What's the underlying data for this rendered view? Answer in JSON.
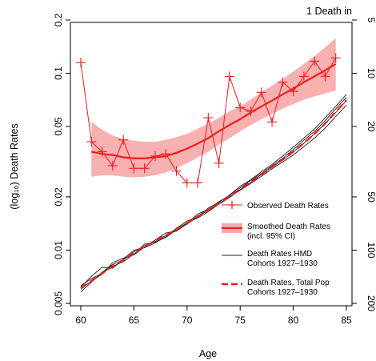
{
  "chart_data": {
    "type": "line",
    "xlabel": "Age",
    "ylabel": "(log₁₀) Death Rates",
    "right_axis_title": "1 Death in",
    "x_range": [
      60,
      85
    ],
    "y_range": [
      0.005,
      0.2
    ],
    "y_scale": "log10",
    "x_ticks": [
      60,
      65,
      70,
      75,
      80,
      85
    ],
    "x_tick_labels": [
      "60",
      "65",
      "70",
      "75",
      "80",
      "85"
    ],
    "y_ticks": [
      0.005,
      0.01,
      0.02,
      0.05,
      0.1,
      0.2
    ],
    "y_tick_labels": [
      "0.005",
      "0.01",
      "0.02",
      "0.05",
      "0.1",
      "0.2"
    ],
    "right_ticks": [
      5,
      10,
      20,
      50,
      100,
      200
    ],
    "right_tick_labels": [
      "5",
      "10",
      "20",
      "50",
      "100",
      "200"
    ],
    "grid": false,
    "legend_position": "right",
    "colors": {
      "red": "#ee1c1c",
      "band": "#f7a7a7",
      "black": "#222222"
    },
    "legend": [
      {
        "key": "observed",
        "label_lines": [
          "Observed Death Rates"
        ]
      },
      {
        "key": "smoothed",
        "label_lines": [
          "Smoothed Death Rates",
          "(incl. 95% CI)"
        ]
      },
      {
        "key": "hmd",
        "label_lines": [
          "Death Rates HMD",
          "Cohorts 1927–1930"
        ]
      },
      {
        "key": "total",
        "label_lines": [
          "Death Rates, Total Pop",
          "Cohorts 1927–1930"
        ]
      }
    ],
    "series": [
      {
        "name": "Observed Death Rates",
        "style": "red-line-plus-markers",
        "x": [
          60,
          61,
          62,
          63,
          64,
          65,
          66,
          67,
          68,
          69,
          70,
          71,
          72,
          73,
          74,
          75,
          76,
          77,
          78,
          79,
          80,
          81,
          82,
          83,
          84
        ],
        "values": [
          0.115,
          0.041,
          0.036,
          0.03,
          0.042,
          0.029,
          0.029,
          0.034,
          0.035,
          0.028,
          0.024,
          0.024,
          0.056,
          0.031,
          0.096,
          0.064,
          0.061,
          0.078,
          0.053,
          0.089,
          0.079,
          0.096,
          0.117,
          0.096,
          0.122
        ]
      },
      {
        "name": "Smoothed Death Rates (incl. 95% CI)",
        "style": "red-line-with-band",
        "x": [
          61,
          62,
          63,
          64,
          65,
          66,
          67,
          68,
          69,
          70,
          71,
          72,
          73,
          74,
          75,
          76,
          77,
          78,
          79,
          80,
          81,
          82,
          83,
          84
        ],
        "values": [
          0.036,
          0.035,
          0.0345,
          0.0335,
          0.033,
          0.033,
          0.0335,
          0.034,
          0.0355,
          0.0375,
          0.04,
          0.043,
          0.047,
          0.051,
          0.055,
          0.06,
          0.065,
          0.07,
          0.076,
          0.082,
          0.089,
          0.096,
          0.104,
          0.113
        ],
        "lower": [
          0.026,
          0.0265,
          0.0265,
          0.026,
          0.0258,
          0.026,
          0.0265,
          0.0275,
          0.029,
          0.031,
          0.0335,
          0.036,
          0.0395,
          0.043,
          0.047,
          0.051,
          0.055,
          0.059,
          0.063,
          0.067,
          0.071,
          0.074,
          0.077,
          0.08
        ],
        "upper": [
          0.053,
          0.048,
          0.0445,
          0.0425,
          0.0415,
          0.041,
          0.041,
          0.042,
          0.0435,
          0.0455,
          0.0485,
          0.052,
          0.056,
          0.061,
          0.065,
          0.071,
          0.078,
          0.085,
          0.093,
          0.102,
          0.113,
          0.125,
          0.14,
          0.158
        ]
      },
      {
        "name": "Death Rates HMD Cohorts 1927–1930",
        "style": "thin-black-lines",
        "x": [
          60,
          61,
          62,
          63,
          64,
          65,
          66,
          67,
          68,
          69,
          70,
          71,
          72,
          73,
          74,
          75,
          76,
          77,
          78,
          79,
          80,
          81,
          82,
          83,
          84,
          85
        ],
        "lines": [
          [
            0.0058,
            0.0066,
            0.0075,
            0.0083,
            0.0088,
            0.0098,
            0.0106,
            0.0112,
            0.0121,
            0.0132,
            0.014,
            0.0155,
            0.0168,
            0.0183,
            0.02,
            0.0218,
            0.0238,
            0.0262,
            0.0288,
            0.0315,
            0.0345,
            0.0385,
            0.043,
            0.049,
            0.057,
            0.066
          ],
          [
            0.0063,
            0.0069,
            0.0074,
            0.0081,
            0.0086,
            0.0095,
            0.0108,
            0.0111,
            0.0118,
            0.013,
            0.0143,
            0.0152,
            0.0165,
            0.0182,
            0.0198,
            0.022,
            0.0242,
            0.0268,
            0.0295,
            0.0322,
            0.036,
            0.0402,
            0.0455,
            0.052,
            0.06,
            0.07
          ],
          [
            0.006,
            0.0067,
            0.0073,
            0.0085,
            0.009,
            0.0094,
            0.0104,
            0.0114,
            0.0125,
            0.0128,
            0.0141,
            0.016,
            0.017,
            0.0188,
            0.0203,
            0.0225,
            0.0248,
            0.0272,
            0.03,
            0.033,
            0.037,
            0.0418,
            0.047,
            0.054,
            0.063,
            0.073
          ],
          [
            0.0062,
            0.0071,
            0.008,
            0.0079,
            0.0089,
            0.01,
            0.0103,
            0.011,
            0.0119,
            0.0133,
            0.0146,
            0.0154,
            0.0173,
            0.0186,
            0.0205,
            0.023,
            0.025,
            0.0278,
            0.0305,
            0.034,
            0.0382,
            0.043,
            0.0485,
            0.056,
            0.065,
            0.076
          ]
        ]
      },
      {
        "name": "Death Rates, Total Pop Cohorts 1927–1930",
        "style": "red-dashed",
        "x": [
          60,
          61,
          62,
          63,
          64,
          65,
          66,
          67,
          68,
          69,
          70,
          71,
          72,
          73,
          74,
          75,
          76,
          77,
          78,
          79,
          80,
          81,
          82,
          83,
          84,
          85
        ],
        "values": [
          0.0061,
          0.0067,
          0.0074,
          0.0081,
          0.0088,
          0.0096,
          0.0105,
          0.0113,
          0.0121,
          0.0131,
          0.0142,
          0.0155,
          0.0169,
          0.0184,
          0.0201,
          0.0221,
          0.0243,
          0.0268,
          0.0295,
          0.0325,
          0.036,
          0.0403,
          0.0455,
          0.052,
          0.0605,
          0.0705
        ]
      }
    ]
  }
}
